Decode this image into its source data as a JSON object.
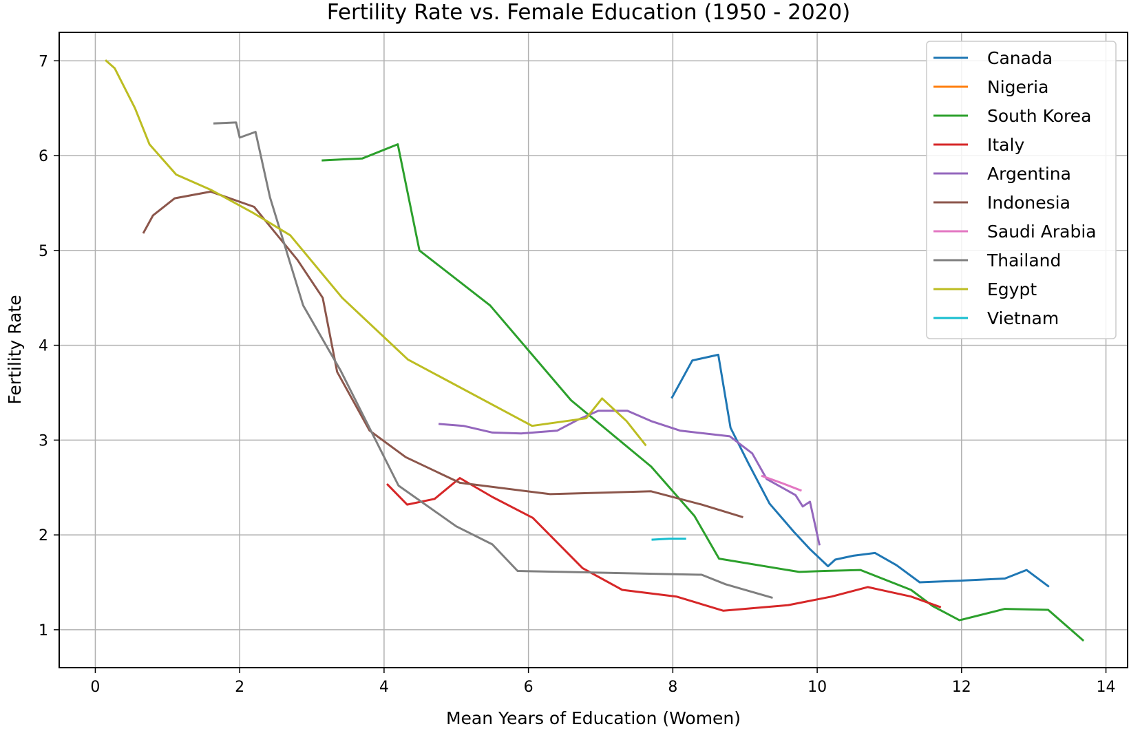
{
  "chart_data": {
    "type": "line",
    "title": "Fertility Rate vs. Female Education (1950 - 2020)",
    "xlabel": "Mean Years of Education (Women)",
    "ylabel": "Fertility Rate",
    "xlim": [
      -0.5,
      14.3
    ],
    "ylim": [
      0.6,
      7.3
    ],
    "xticks": [
      0,
      2,
      4,
      6,
      8,
      10,
      12,
      14
    ],
    "yticks": [
      1,
      2,
      3,
      4,
      5,
      6,
      7
    ],
    "grid": true,
    "legend_position": "top-right",
    "series": [
      {
        "name": "Canada",
        "color": "#1f77b4",
        "points": [
          [
            7.99,
            3.45
          ],
          [
            8.27,
            3.84
          ],
          [
            8.63,
            3.9
          ],
          [
            8.8,
            3.13
          ],
          [
            9.05,
            2.75
          ],
          [
            9.34,
            2.33
          ],
          [
            9.68,
            2.03
          ],
          [
            9.9,
            1.85
          ],
          [
            10.15,
            1.67
          ],
          [
            10.25,
            1.74
          ],
          [
            10.5,
            1.78
          ],
          [
            10.8,
            1.81
          ],
          [
            11.1,
            1.68
          ],
          [
            11.42,
            1.5
          ],
          [
            12.05,
            1.52
          ],
          [
            12.6,
            1.54
          ],
          [
            12.9,
            1.63
          ],
          [
            13.2,
            1.46
          ]
        ]
      },
      {
        "name": "Nigeria",
        "color": "#ff7f0e",
        "points": []
      },
      {
        "name": "South Korea",
        "color": "#2ca02c",
        "points": [
          [
            3.15,
            5.95
          ],
          [
            3.7,
            5.97
          ],
          [
            4.19,
            6.12
          ],
          [
            4.49,
            5.0
          ],
          [
            5.47,
            4.42
          ],
          [
            6.59,
            3.42
          ],
          [
            7.7,
            2.72
          ],
          [
            8.3,
            2.2
          ],
          [
            8.64,
            1.75
          ],
          [
            9.75,
            1.61
          ],
          [
            10.1,
            1.62
          ],
          [
            10.6,
            1.63
          ],
          [
            11.3,
            1.42
          ],
          [
            11.6,
            1.25
          ],
          [
            11.97,
            1.1
          ],
          [
            12.6,
            1.22
          ],
          [
            13.2,
            1.21
          ],
          [
            13.68,
            0.89
          ]
        ]
      },
      {
        "name": "Italy",
        "color": "#d62728",
        "points": [
          [
            4.05,
            2.53
          ],
          [
            4.32,
            2.32
          ],
          [
            4.7,
            2.38
          ],
          [
            5.05,
            2.6
          ],
          [
            5.5,
            2.4
          ],
          [
            6.06,
            2.18
          ],
          [
            6.75,
            1.65
          ],
          [
            7.3,
            1.42
          ],
          [
            8.05,
            1.35
          ],
          [
            8.7,
            1.2
          ],
          [
            9.6,
            1.26
          ],
          [
            10.2,
            1.35
          ],
          [
            10.7,
            1.45
          ],
          [
            11.3,
            1.35
          ],
          [
            11.7,
            1.24
          ]
        ]
      },
      {
        "name": "Argentina",
        "color": "#9467bd",
        "points": [
          [
            4.77,
            3.17
          ],
          [
            5.1,
            3.15
          ],
          [
            5.5,
            3.08
          ],
          [
            5.9,
            3.07
          ],
          [
            6.4,
            3.1
          ],
          [
            6.7,
            3.22
          ],
          [
            6.97,
            3.31
          ],
          [
            7.37,
            3.31
          ],
          [
            7.7,
            3.2
          ],
          [
            8.1,
            3.1
          ],
          [
            8.79,
            3.04
          ],
          [
            9.1,
            2.86
          ],
          [
            9.3,
            2.59
          ],
          [
            9.7,
            2.42
          ],
          [
            9.8,
            2.3
          ],
          [
            9.9,
            2.35
          ],
          [
            10.03,
            1.9
          ]
        ]
      },
      {
        "name": "Indonesia",
        "color": "#8c564b",
        "points": [
          [
            0.67,
            5.19
          ],
          [
            0.8,
            5.37
          ],
          [
            1.1,
            5.55
          ],
          [
            1.6,
            5.62
          ],
          [
            2.2,
            5.46
          ],
          [
            2.8,
            4.9
          ],
          [
            3.15,
            4.5
          ],
          [
            3.35,
            3.72
          ],
          [
            3.8,
            3.1
          ],
          [
            4.3,
            2.82
          ],
          [
            5.05,
            2.55
          ],
          [
            6.3,
            2.43
          ],
          [
            7.7,
            2.46
          ],
          [
            8.4,
            2.32
          ],
          [
            8.96,
            2.19
          ]
        ]
      },
      {
        "name": "Saudi Arabia",
        "color": "#e377c2",
        "points": [
          [
            9.24,
            2.62
          ],
          [
            9.5,
            2.55
          ],
          [
            9.77,
            2.47
          ]
        ]
      },
      {
        "name": "Thailand",
        "color": "#7f7f7f",
        "points": [
          [
            1.65,
            6.34
          ],
          [
            1.95,
            6.35
          ],
          [
            2.0,
            6.19
          ],
          [
            2.22,
            6.25
          ],
          [
            2.42,
            5.56
          ],
          [
            2.88,
            4.42
          ],
          [
            3.4,
            3.73
          ],
          [
            4.2,
            2.52
          ],
          [
            5.0,
            2.09
          ],
          [
            5.5,
            1.9
          ],
          [
            5.85,
            1.62
          ],
          [
            6.5,
            1.61
          ],
          [
            8.4,
            1.58
          ],
          [
            8.73,
            1.48
          ],
          [
            9.37,
            1.34
          ]
        ]
      },
      {
        "name": "Egypt",
        "color": "#bcbd22",
        "points": [
          [
            0.15,
            7.0
          ],
          [
            0.27,
            6.92
          ],
          [
            0.55,
            6.5
          ],
          [
            0.75,
            6.12
          ],
          [
            1.12,
            5.8
          ],
          [
            1.6,
            5.64
          ],
          [
            2.2,
            5.39
          ],
          [
            2.7,
            5.16
          ],
          [
            3.42,
            4.5
          ],
          [
            4.33,
            3.85
          ],
          [
            6.05,
            3.15
          ],
          [
            6.8,
            3.23
          ],
          [
            7.02,
            3.44
          ],
          [
            7.36,
            3.2
          ],
          [
            7.62,
            2.95
          ]
        ]
      },
      {
        "name": "Vietnam",
        "color": "#17becf",
        "points": [
          [
            7.72,
            1.95
          ],
          [
            7.95,
            1.96
          ],
          [
            8.17,
            1.96
          ]
        ]
      }
    ]
  }
}
